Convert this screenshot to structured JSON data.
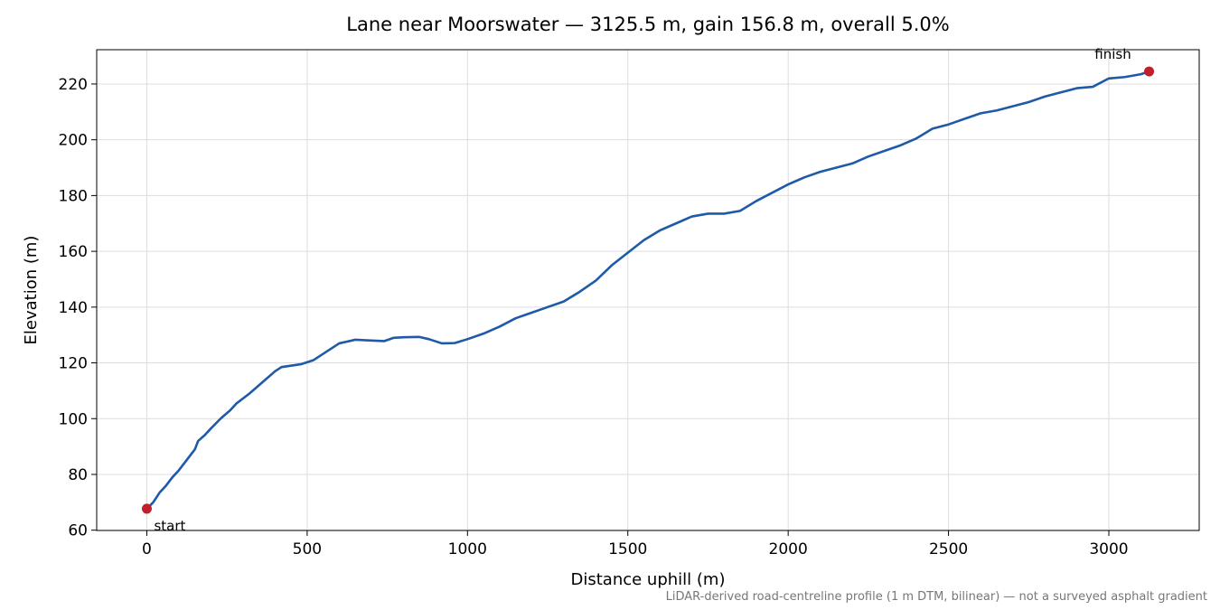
{
  "chart_data": {
    "type": "line",
    "title": "Lane near Moorswater — 3125.5 m, gain 156.8 m, overall 5.0%",
    "x_label": "Distance uphill (m)",
    "y_label": "Elevation (m)",
    "footnote": "LiDAR-derived road-centreline profile (1 m DTM, bilinear) — not a surveyed asphalt gradient",
    "annotations": {
      "start": "start",
      "finish": "finish"
    },
    "marker_color": "#c0202a",
    "grid": true,
    "xlim": [
      -156.3,
      3281.8
    ],
    "ylim": [
      59.9,
      232.3
    ],
    "xticks": [
      0,
      500,
      1000,
      1500,
      2000,
      2500,
      3000
    ],
    "yticks": [
      60,
      80,
      100,
      120,
      140,
      160,
      180,
      200,
      220
    ],
    "x": [
      0,
      20,
      40,
      60,
      80,
      100,
      130,
      150,
      160,
      180,
      200,
      230,
      260,
      280,
      320,
      360,
      400,
      420,
      480,
      520,
      560,
      600,
      650,
      700,
      740,
      770,
      800,
      850,
      880,
      920,
      960,
      1000,
      1050,
      1100,
      1150,
      1200,
      1250,
      1300,
      1350,
      1400,
      1450,
      1500,
      1550,
      1600,
      1650,
      1700,
      1750,
      1800,
      1850,
      1900,
      1950,
      2000,
      2050,
      2100,
      2150,
      2200,
      2250,
      2300,
      2350,
      2400,
      2450,
      2500,
      2550,
      2600,
      2650,
      2700,
      2750,
      2800,
      2850,
      2900,
      2950,
      3000,
      3050,
      3100,
      3125.5
    ],
    "series": [
      {
        "name": "Elevation",
        "color": "#1f5aa8",
        "values": [
          67.7,
          70,
          73.5,
          76,
          79,
          81.5,
          86,
          89,
          92,
          94,
          96.5,
          100,
          103,
          105.5,
          109,
          113,
          117,
          118.5,
          119.5,
          121,
          124,
          127,
          128.3,
          128,
          127.8,
          129,
          129.2,
          129.3,
          128.5,
          127,
          127.1,
          128.5,
          130.5,
          133,
          136,
          138,
          140,
          142,
          145.5,
          149.5,
          155,
          159.5,
          164,
          167.5,
          170,
          172.5,
          173.5,
          173.5,
          174.5,
          178,
          181,
          184,
          186.5,
          188.5,
          190,
          191.5,
          194,
          196,
          198,
          200.5,
          204,
          205.5,
          207.5,
          209.5,
          210.5,
          212,
          213.5,
          215.5,
          217,
          218.5,
          219,
          222,
          222.5,
          223.5,
          224.5
        ]
      }
    ]
  }
}
